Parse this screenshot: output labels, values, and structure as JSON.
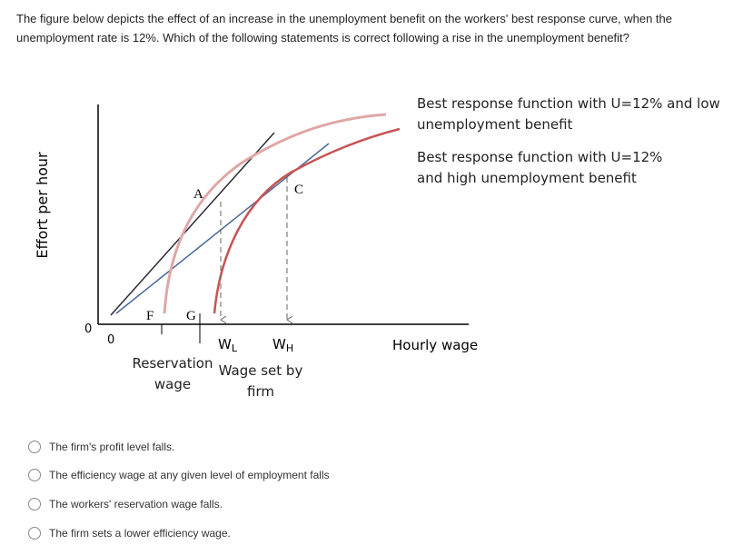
{
  "question": "The figure below depicts the effect of an increase in the unemployment benefit on the workers' best response curve, when the unemployment rate is 12%. Which of the following statements is correct following a rise in the unemployment benefit?",
  "figure": {
    "y_axis_label": "Effort per hour",
    "x_axis_label": "Hourly wage",
    "origin_y": "0",
    "origin_x": "0",
    "point_a": "A",
    "point_c": "C",
    "point_f": "F",
    "point_g": "G",
    "wage_low": {
      "main": "W",
      "sub": "L"
    },
    "wage_high": {
      "main": "W",
      "sub": "H"
    },
    "reservation_wage": "Reservation wage",
    "wage_set_by_firm": "Wage set by firm",
    "legend_low": "Best response function with U=12% and low unemployment benefit",
    "legend_high": "Best response function with U=12% and high unemployment benefit"
  },
  "options": [
    "The firm's profit level falls.",
    "The efficiency wage at any given level of employment falls",
    "The workers' reservation wage falls.",
    "The firm sets a lower efficiency wage."
  ]
}
